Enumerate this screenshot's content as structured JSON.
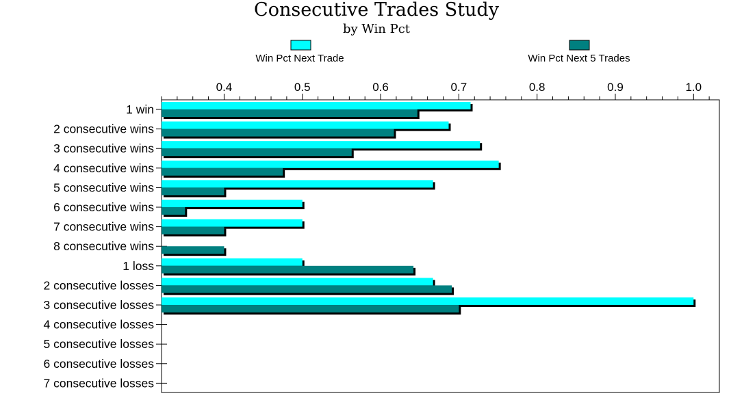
{
  "chart_data": {
    "type": "bar",
    "orientation": "horizontal",
    "title": "Consecutive Trades Study",
    "subtitle": "by Win Pct",
    "xlabel": "",
    "ylabel": "",
    "xlim": [
      0.32,
      1.033
    ],
    "x_ticks": [
      0.4,
      0.5,
      0.6,
      0.7,
      0.8,
      0.9,
      1.0
    ],
    "x_tick_labels": [
      "0.4",
      "0.5",
      "0.6",
      "0.7",
      "0.8",
      "0.9",
      "1.0"
    ],
    "grid": false,
    "legend_position": "top",
    "categories": [
      "1 win",
      "2 consecutive wins",
      "3 consecutive wins",
      "4 consecutive wins",
      "5 consecutive wins",
      "6 consecutive wins",
      "7 consecutive wins",
      "8 consecutive wins",
      "1 loss",
      "2 consecutive losses",
      "3 consecutive losses",
      "4 consecutive losses",
      "5 consecutive losses",
      "6 consecutive losses",
      "7 consecutive losses"
    ],
    "series": [
      {
        "name": "Win Pct Next Trade",
        "color": "#00ffff",
        "values": [
          0.715,
          0.687,
          0.727,
          0.751,
          0.667,
          0.5,
          0.5,
          null,
          0.5,
          0.667,
          1.0,
          null,
          null,
          null,
          null
        ]
      },
      {
        "name": "Win Pct Next 5 Trades",
        "color": "#008080",
        "values": [
          0.647,
          0.617,
          0.563,
          0.475,
          0.4,
          0.35,
          0.4,
          0.4,
          0.642,
          0.691,
          0.7,
          null,
          null,
          null,
          null
        ]
      }
    ]
  }
}
